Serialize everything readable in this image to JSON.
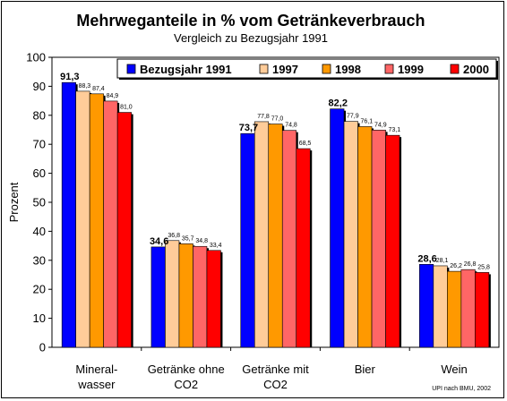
{
  "chart_data": {
    "type": "bar",
    "title": "Mehrweganteile in % vom Getränkeverbrauch",
    "subtitle": "Vergleich zu Bezugsjahr 1991",
    "ylabel": "Prozent",
    "xlabel": "",
    "ylim": [
      0,
      100
    ],
    "yticks": [
      0,
      10,
      20,
      30,
      40,
      50,
      60,
      70,
      80,
      90,
      100
    ],
    "grid": false,
    "legend_position": "top",
    "categories": [
      [
        "Mineral-",
        "wasser"
      ],
      [
        "Getränke ohne",
        "CO2"
      ],
      [
        "Getränke mit",
        "CO2"
      ],
      [
        "Bier"
      ],
      [
        "Wein"
      ]
    ],
    "series": [
      {
        "name": "Bezugsjahr 1991",
        "color": "#0000ff",
        "values": [
          91.3,
          34.6,
          73.7,
          82.2,
          28.6
        ],
        "labels": [
          "91,3",
          "34,6",
          "73,7",
          "82,2",
          "28,6"
        ]
      },
      {
        "name": "1997",
        "color": "#ffcc99",
        "values": [
          88.3,
          36.8,
          77.8,
          77.9,
          28.1
        ],
        "labels": [
          "88,3",
          "36,8",
          "77,8",
          "77,9",
          "28,1"
        ]
      },
      {
        "name": "1998",
        "color": "#ff9900",
        "values": [
          87.4,
          35.7,
          77.0,
          76.1,
          26.2
        ],
        "labels": [
          "87,4",
          "35,7",
          "77,0",
          "76,1",
          "26,2"
        ]
      },
      {
        "name": "1999",
        "color": "#ff6666",
        "values": [
          84.9,
          34.8,
          74.8,
          74.9,
          26.8
        ],
        "labels": [
          "84,9",
          "34,8",
          "74,8",
          "74,9",
          "26,8"
        ]
      },
      {
        "name": "2000",
        "color": "#ff0000",
        "values": [
          81.0,
          33.4,
          68.5,
          73.1,
          25.8
        ],
        "labels": [
          "81,0",
          "33,4",
          "68,5",
          "73,1",
          "25,8"
        ]
      }
    ],
    "source": "UPI nach BMU, 2002"
  }
}
